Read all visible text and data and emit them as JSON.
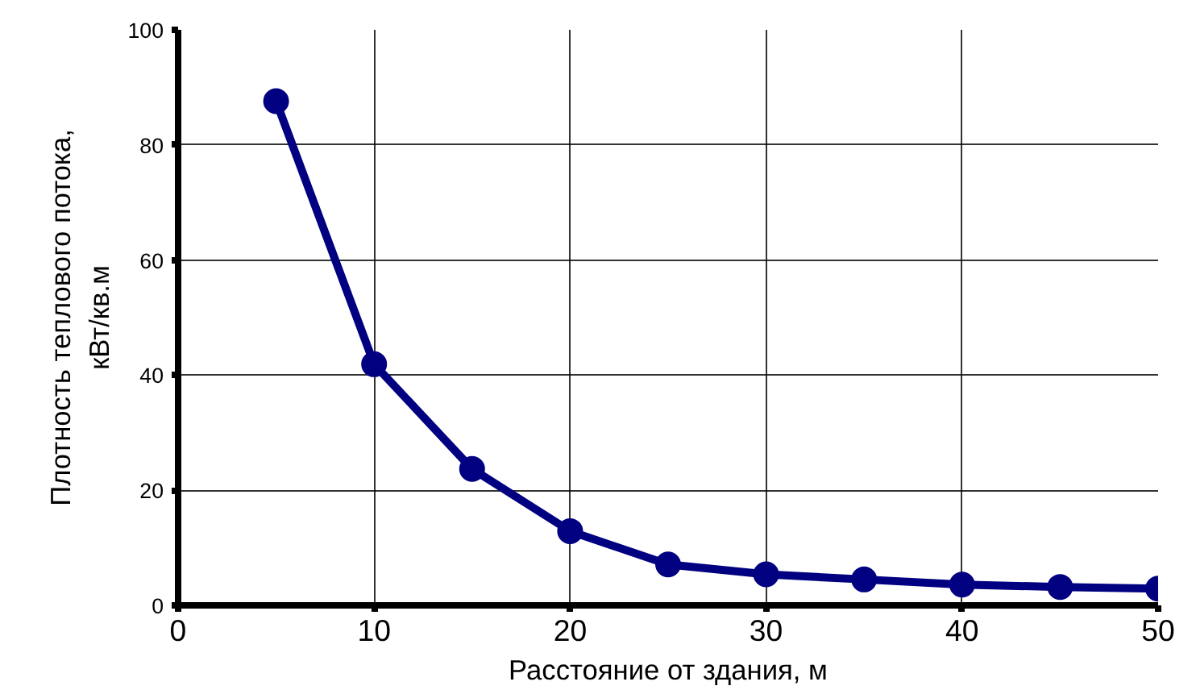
{
  "chart_data": {
    "type": "line",
    "xlabel": "Расстояние от здания, м",
    "ylabel": "Плотность теплового потока,\nкВт/кв.м",
    "x": [
      5,
      10,
      15,
      20,
      25,
      30,
      35,
      40,
      45,
      50
    ],
    "series": [
      {
        "color": "#000080",
        "values": [
          87.6,
          41.9,
          23.7,
          12.9,
          7.1,
          5.4,
          4.5,
          3.6,
          3.2,
          2.9
        ]
      }
    ],
    "xlim": [
      0,
      50
    ],
    "ylim": [
      0,
      100
    ],
    "xticks": [
      0,
      10,
      20,
      30,
      40,
      50
    ],
    "yticks": [
      0,
      20,
      40,
      60,
      80,
      100
    ],
    "grid": true,
    "marker": "circle",
    "line_style": "solid"
  }
}
